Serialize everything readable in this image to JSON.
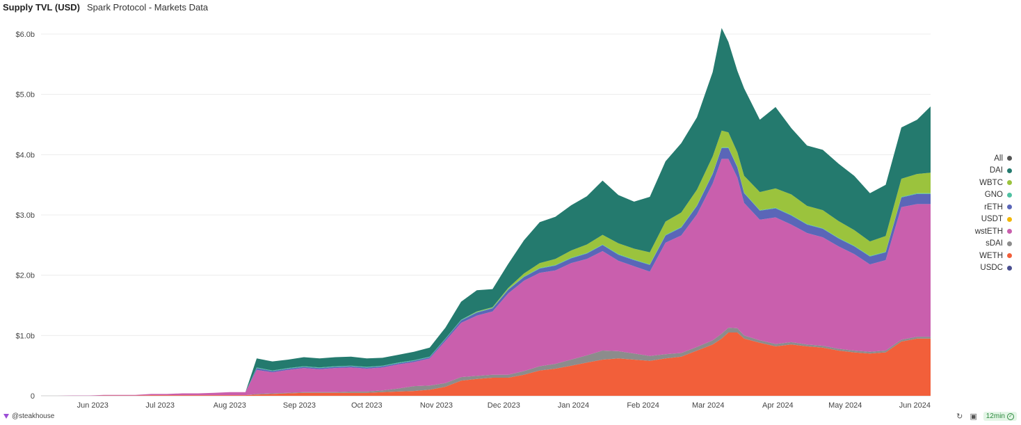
{
  "header": {
    "title": "Supply TVL (USD)",
    "subtitle": "Spark Protocol - Markets Data"
  },
  "chart_data": {
    "type": "area",
    "stacked": true,
    "x": [
      "2023-05-09",
      "2023-05-16",
      "2023-05-23",
      "2023-05-30",
      "2023-06-06",
      "2023-06-13",
      "2023-06-20",
      "2023-06-27",
      "2023-07-04",
      "2023-07-11",
      "2023-07-18",
      "2023-07-25",
      "2023-08-01",
      "2023-08-08",
      "2023-08-13",
      "2023-08-20",
      "2023-08-27",
      "2023-09-03",
      "2023-09-10",
      "2023-09-17",
      "2023-09-24",
      "2023-10-01",
      "2023-10-08",
      "2023-10-15",
      "2023-10-22",
      "2023-10-29",
      "2023-11-05",
      "2023-11-12",
      "2023-11-19",
      "2023-11-26",
      "2023-12-03",
      "2023-12-10",
      "2023-12-17",
      "2023-12-24",
      "2023-12-31",
      "2024-01-07",
      "2024-01-14",
      "2024-01-21",
      "2024-01-28",
      "2024-02-04",
      "2024-02-11",
      "2024-02-18",
      "2024-02-25",
      "2024-03-03",
      "2024-03-07",
      "2024-03-10",
      "2024-03-14",
      "2024-03-17",
      "2024-03-24",
      "2024-03-31",
      "2024-04-07",
      "2024-04-14",
      "2024-04-21",
      "2024-04-28",
      "2024-05-05",
      "2024-05-12",
      "2024-05-19",
      "2024-05-26",
      "2024-06-02",
      "2024-06-08"
    ],
    "series": [
      {
        "name": "WETH",
        "color": "#f25f3a",
        "values": [
          0,
          0,
          0,
          0,
          0.005,
          0.005,
          0.005,
          0.01,
          0.01,
          0.01,
          0.01,
          0.01,
          0.01,
          0.01,
          0.02,
          0.03,
          0.04,
          0.05,
          0.05,
          0.05,
          0.05,
          0.05,
          0.06,
          0.07,
          0.08,
          0.1,
          0.15,
          0.25,
          0.28,
          0.3,
          0.3,
          0.35,
          0.42,
          0.45,
          0.5,
          0.55,
          0.6,
          0.62,
          0.6,
          0.58,
          0.62,
          0.65,
          0.75,
          0.85,
          0.95,
          1.05,
          1.05,
          0.95,
          0.88,
          0.82,
          0.85,
          0.82,
          0.8,
          0.75,
          0.72,
          0.7,
          0.72,
          0.9,
          0.95,
          0.95
        ]
      },
      {
        "name": "sDAI",
        "color": "#8c8c8c",
        "values": [
          0,
          0,
          0,
          0,
          0,
          0,
          0,
          0,
          0,
          0,
          0,
          0,
          0,
          0,
          0.01,
          0.01,
          0.01,
          0.01,
          0.01,
          0.01,
          0.02,
          0.02,
          0.03,
          0.05,
          0.08,
          0.07,
          0.06,
          0.06,
          0.05,
          0.05,
          0.05,
          0.06,
          0.07,
          0.08,
          0.1,
          0.12,
          0.15,
          0.12,
          0.1,
          0.08,
          0.07,
          0.06,
          0.06,
          0.07,
          0.08,
          0.08,
          0.07,
          0.05,
          0.04,
          0.04,
          0.04,
          0.03,
          0.03,
          0.03,
          0.03,
          0.03,
          0.03,
          0.03,
          0.03,
          0.03
        ]
      },
      {
        "name": "wstETH",
        "color": "#c95fad",
        "values": [
          0,
          0,
          0.005,
          0.005,
          0.01,
          0.01,
          0.01,
          0.02,
          0.02,
          0.03,
          0.03,
          0.04,
          0.05,
          0.05,
          0.4,
          0.35,
          0.38,
          0.4,
          0.38,
          0.4,
          0.4,
          0.38,
          0.38,
          0.4,
          0.4,
          0.45,
          0.7,
          0.9,
          1.0,
          1.05,
          1.35,
          1.5,
          1.55,
          1.55,
          1.6,
          1.6,
          1.65,
          1.5,
          1.45,
          1.4,
          1.85,
          1.95,
          2.2,
          2.6,
          2.9,
          2.8,
          2.5,
          2.2,
          2.0,
          2.1,
          1.95,
          1.85,
          1.8,
          1.7,
          1.6,
          1.45,
          1.5,
          2.2,
          2.2,
          2.2
        ]
      },
      {
        "name": "USDT",
        "color": "#f2b705",
        "values": [
          0,
          0,
          0,
          0,
          0,
          0,
          0,
          0,
          0,
          0,
          0,
          0,
          0,
          0,
          0,
          0,
          0,
          0,
          0,
          0,
          0,
          0,
          0,
          0,
          0,
          0,
          0,
          0,
          0,
          0,
          0,
          0,
          0,
          0,
          0,
          0,
          0,
          0,
          0,
          0,
          0,
          0,
          0,
          0,
          0,
          0,
          0,
          0,
          0,
          0,
          0,
          0,
          0,
          0,
          0,
          0,
          0,
          0,
          0,
          0
        ]
      },
      {
        "name": "rETH",
        "color": "#5a66b8",
        "values": [
          0,
          0,
          0,
          0,
          0,
          0,
          0,
          0,
          0,
          0,
          0,
          0,
          0,
          0,
          0.03,
          0.02,
          0.02,
          0.02,
          0.02,
          0.02,
          0.02,
          0.02,
          0.02,
          0.02,
          0.02,
          0.02,
          0.03,
          0.04,
          0.05,
          0.05,
          0.06,
          0.06,
          0.07,
          0.08,
          0.08,
          0.09,
          0.1,
          0.1,
          0.1,
          0.11,
          0.12,
          0.13,
          0.14,
          0.16,
          0.18,
          0.18,
          0.17,
          0.16,
          0.15,
          0.15,
          0.15,
          0.14,
          0.14,
          0.13,
          0.13,
          0.13,
          0.13,
          0.16,
          0.17,
          0.17
        ]
      },
      {
        "name": "GNO",
        "color": "#4fc1a2",
        "values": [
          0,
          0,
          0,
          0,
          0,
          0,
          0,
          0,
          0,
          0,
          0,
          0,
          0,
          0,
          0.01,
          0.01,
          0.01,
          0.01,
          0.01,
          0.01,
          0.01,
          0.01,
          0.01,
          0.01,
          0.01,
          0.01,
          0.01,
          0.01,
          0.01,
          0.01,
          0.01,
          0.01,
          0.01,
          0.01,
          0.01,
          0.01,
          0.01,
          0.01,
          0.01,
          0.01,
          0.01,
          0.01,
          0.01,
          0.01,
          0.01,
          0.01,
          0.01,
          0.01,
          0.01,
          0.01,
          0.01,
          0.01,
          0.01,
          0.01,
          0.01,
          0.01,
          0.01,
          0.01,
          0.01,
          0.01
        ]
      },
      {
        "name": "WBTC",
        "color": "#9bc33d",
        "values": [
          0,
          0,
          0,
          0,
          0,
          0,
          0,
          0,
          0,
          0,
          0,
          0,
          0,
          0,
          0,
          0,
          0,
          0,
          0,
          0,
          0,
          0,
          0,
          0,
          0,
          0,
          0,
          0,
          0.01,
          0.01,
          0.02,
          0.05,
          0.08,
          0.1,
          0.12,
          0.14,
          0.16,
          0.18,
          0.18,
          0.2,
          0.22,
          0.24,
          0.26,
          0.28,
          0.28,
          0.25,
          0.24,
          0.28,
          0.3,
          0.32,
          0.34,
          0.3,
          0.3,
          0.28,
          0.26,
          0.24,
          0.26,
          0.3,
          0.32,
          0.34
        ]
      },
      {
        "name": "DAI",
        "color": "#247a6e",
        "values": [
          0,
          0,
          0,
          0,
          0,
          0,
          0,
          0,
          0,
          0,
          0,
          0,
          0,
          0,
          0.15,
          0.15,
          0.14,
          0.15,
          0.15,
          0.15,
          0.15,
          0.14,
          0.13,
          0.13,
          0.14,
          0.15,
          0.18,
          0.3,
          0.35,
          0.3,
          0.4,
          0.55,
          0.68,
          0.7,
          0.75,
          0.8,
          0.9,
          0.8,
          0.78,
          0.92,
          1.0,
          1.15,
          1.2,
          1.4,
          1.7,
          1.5,
          1.35,
          1.45,
          1.2,
          1.35,
          1.1,
          1.0,
          1.0,
          0.95,
          0.9,
          0.8,
          0.85,
          0.85,
          0.9,
          1.1
        ]
      },
      {
        "name": "USDC",
        "color": "#4a4f8f",
        "values": [
          0,
          0,
          0,
          0,
          0,
          0,
          0,
          0,
          0,
          0,
          0,
          0,
          0,
          0,
          0,
          0,
          0,
          0,
          0,
          0,
          0,
          0,
          0,
          0,
          0,
          0,
          0,
          0,
          0,
          0,
          0,
          0,
          0,
          0,
          0,
          0,
          0,
          0,
          0,
          0,
          0,
          0,
          0,
          0,
          0,
          0,
          0,
          0,
          0,
          0,
          0,
          0,
          0,
          0,
          0,
          0,
          0,
          0,
          0,
          0
        ]
      }
    ],
    "y_ticks": [
      {
        "value": 0,
        "label": "0"
      },
      {
        "value": 1,
        "label": "$1.0b"
      },
      {
        "value": 2,
        "label": "$2.0b"
      },
      {
        "value": 3,
        "label": "$3.0b"
      },
      {
        "value": 4,
        "label": "$4.0b"
      },
      {
        "value": 5,
        "label": "$5.0b"
      },
      {
        "value": 6,
        "label": "$6.0b"
      }
    ],
    "x_ticks": [
      {
        "date": "2023-06-01",
        "label": "Jun 2023"
      },
      {
        "date": "2023-07-01",
        "label": "Jul 2023"
      },
      {
        "date": "2023-08-01",
        "label": "Aug 2023"
      },
      {
        "date": "2023-09-01",
        "label": "Sep 2023"
      },
      {
        "date": "2023-10-01",
        "label": "Oct 2023"
      },
      {
        "date": "2023-11-01",
        "label": "Nov 2023"
      },
      {
        "date": "2023-12-01",
        "label": "Dec 2023"
      },
      {
        "date": "2024-01-01",
        "label": "Jan 2024"
      },
      {
        "date": "2024-02-01",
        "label": "Feb 2024"
      },
      {
        "date": "2024-03-01",
        "label": "Mar 2024"
      },
      {
        "date": "2024-04-01",
        "label": "Apr 2024"
      },
      {
        "date": "2024-05-01",
        "label": "May 2024"
      },
      {
        "date": "2024-06-01",
        "label": "Jun 2024"
      }
    ],
    "ylim": [
      0,
      6.0
    ],
    "xlim": [
      "2023-05-09",
      "2024-06-08"
    ],
    "grid": true,
    "legend_position": "right"
  },
  "legend": [
    {
      "label": "All",
      "color": "#555555"
    },
    {
      "label": "DAI",
      "color": "#247a6e"
    },
    {
      "label": "WBTC",
      "color": "#9bc33d"
    },
    {
      "label": "GNO",
      "color": "#4fc1a2"
    },
    {
      "label": "rETH",
      "color": "#5a66b8"
    },
    {
      "label": "USDT",
      "color": "#f2b705"
    },
    {
      "label": "wstETH",
      "color": "#c95fad"
    },
    {
      "label": "sDAI",
      "color": "#8c8c8c"
    },
    {
      "label": "WETH",
      "color": "#f25f3a"
    },
    {
      "label": "USDC",
      "color": "#4a4f8f"
    }
  ],
  "footer": {
    "author": "@steakhouse",
    "refresh_badge": "12min"
  }
}
